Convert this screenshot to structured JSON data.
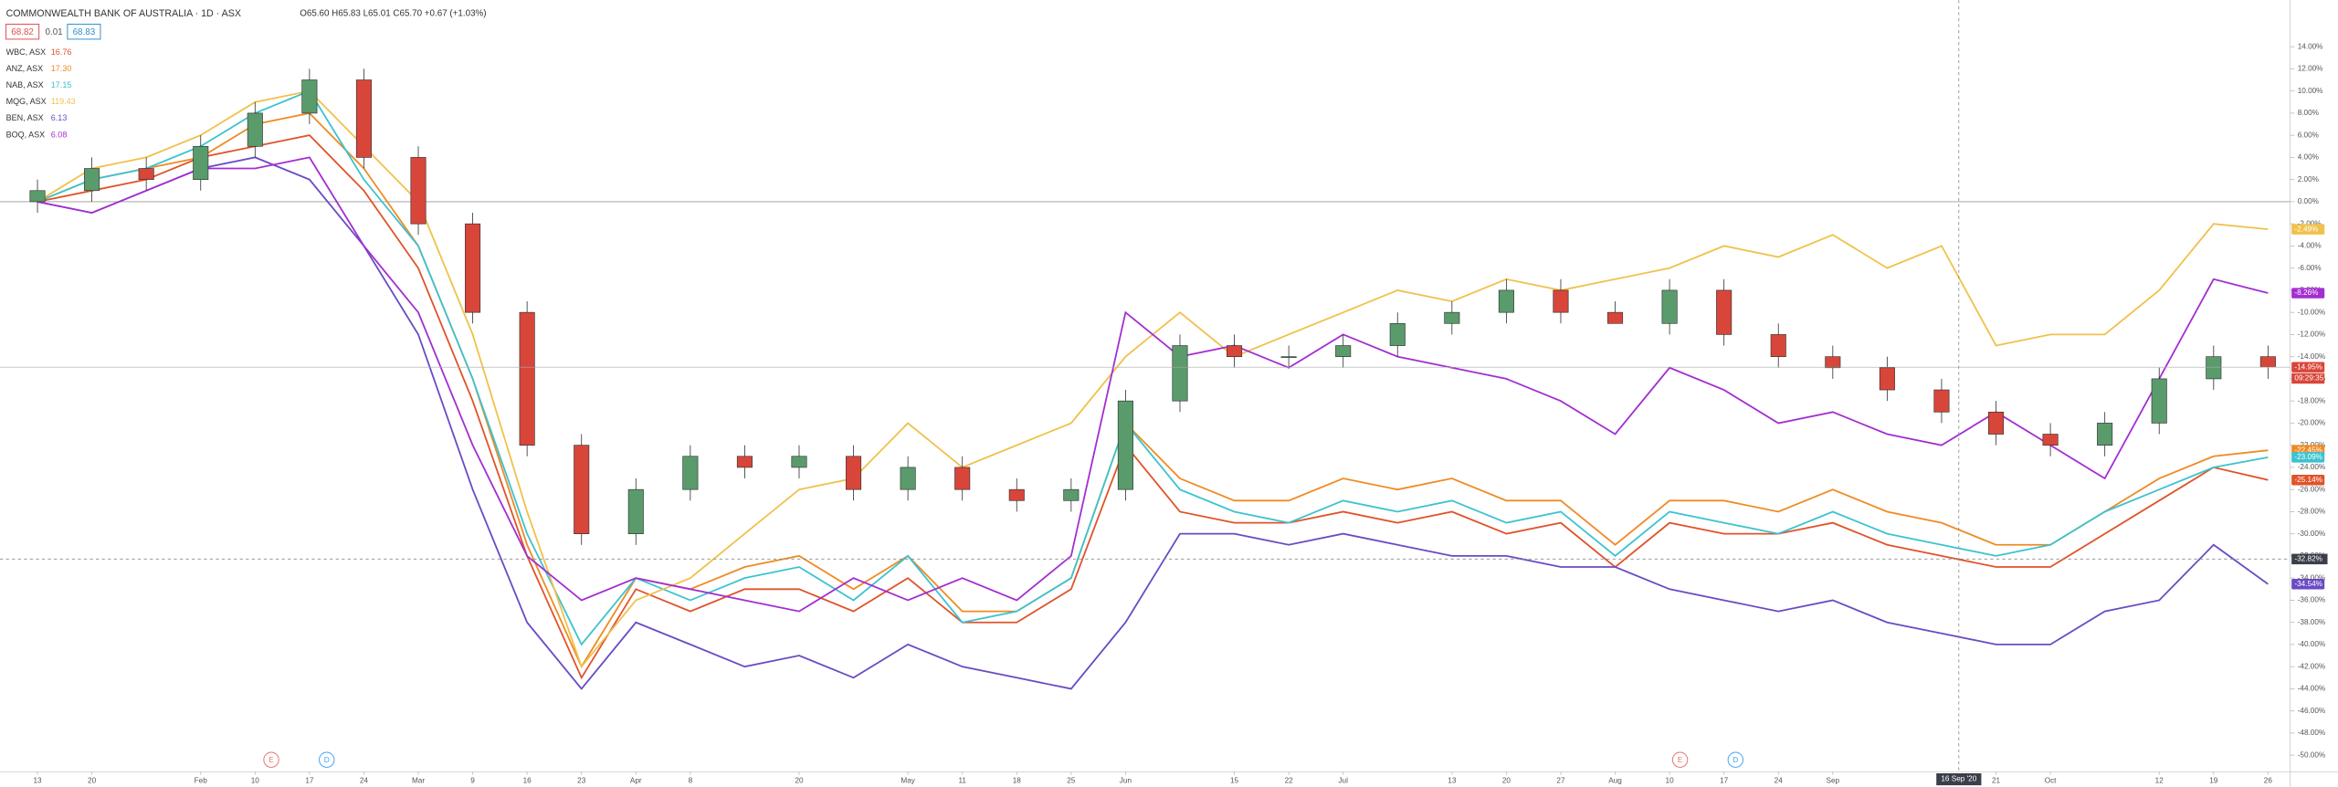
{
  "header": {
    "symbol": "COMMONWEALTH BANK OF AUSTRALIA · 1D · ASX",
    "ohlc_text": "O65.60 H65.83 L65.01 C65.70 +0.67 (+1.03%)",
    "bid": "68.82",
    "spread": "0.01",
    "ask": "68.83"
  },
  "crosshair": {
    "date": "16 Sep '20",
    "value_label": "-32.82%"
  },
  "events": [
    {
      "label": "E"
    },
    {
      "label": "D"
    },
    {
      "label": "E"
    },
    {
      "label": "D"
    }
  ],
  "countdown": "09:29:35",
  "chart_data": {
    "type": "line",
    "grid": false,
    "categories": [
      "13",
      "20",
      null,
      "Feb",
      "10",
      "17",
      "24",
      "Mar",
      "9",
      "16",
      "23",
      "Apr",
      "8",
      null,
      "20",
      null,
      "May",
      "11",
      "18",
      "25",
      "Jun",
      null,
      "15",
      "22",
      "Jul",
      null,
      "13",
      "20",
      "27",
      "Aug",
      "10",
      "17",
      "24",
      "Sep",
      null,
      null,
      "21",
      "Oct",
      null,
      "12",
      "19",
      "26"
    ],
    "ylim": [
      -51.5,
      18.2
    ],
    "yticks": [
      {
        "value": 14,
        "label": "14.00%"
      },
      {
        "value": 12,
        "label": "12.00%"
      },
      {
        "value": 10,
        "label": "10.00%"
      },
      {
        "value": 8,
        "label": "8.00%"
      },
      {
        "value": 6,
        "label": "6.00%"
      },
      {
        "value": 4,
        "label": "4.00%"
      },
      {
        "value": 2,
        "label": "2.00%"
      },
      {
        "value": 0,
        "label": "0.00%"
      },
      {
        "value": -2,
        "label": "-2.00%"
      },
      {
        "value": -4,
        "label": "-4.00%"
      },
      {
        "value": -6,
        "label": "-6.00%"
      },
      {
        "value": -8,
        "label": "-8.00%"
      },
      {
        "value": -10,
        "label": "-10.00%"
      },
      {
        "value": -12,
        "label": "-12.00%"
      },
      {
        "value": -14,
        "label": "-14.00%"
      },
      {
        "value": -16,
        "label": "-16.00%"
      },
      {
        "value": -18,
        "label": "-18.00%"
      },
      {
        "value": -20,
        "label": "-20.00%"
      },
      {
        "value": -22,
        "label": "-22.00%"
      },
      {
        "value": -24,
        "label": "-24.00%"
      },
      {
        "value": -26,
        "label": "-26.00%"
      },
      {
        "value": -28,
        "label": "-28.00%"
      },
      {
        "value": -30,
        "label": "-30.00%"
      },
      {
        "value": -32,
        "label": "-32.00%"
      },
      {
        "value": -34,
        "label": "-34.00%"
      },
      {
        "value": -36,
        "label": "-36.00%"
      },
      {
        "value": -38,
        "label": "-38.00%"
      },
      {
        "value": -40,
        "label": "-40.00%"
      },
      {
        "value": -42,
        "label": "-42.00%"
      },
      {
        "value": -44,
        "label": "-44.00%"
      },
      {
        "value": -46,
        "label": "-46.00%"
      },
      {
        "value": -48,
        "label": "-48.00%"
      },
      {
        "value": -50,
        "label": "-50.00%"
      }
    ],
    "candles": {
      "up_color": "#5a9b6c",
      "down_color": "#d8463a",
      "last_label": "-14.95%",
      "open": [
        0,
        1,
        3,
        2,
        5,
        8,
        11,
        4,
        -2,
        -10,
        -22,
        -30,
        -26,
        -23,
        -24,
        -23,
        -26,
        -24,
        -26,
        -27,
        -26,
        -18,
        -13,
        -14,
        -14,
        -13,
        -11,
        -10,
        -8,
        -10,
        -11,
        -8,
        -12,
        -14,
        -15,
        -17,
        -19,
        -21,
        -22,
        -20,
        -16,
        -14
      ],
      "high": [
        2,
        4,
        4,
        6,
        9,
        12,
        12,
        5,
        -1,
        -9,
        -21,
        -25,
        -22,
        -22,
        -22,
        -22,
        -23,
        -23,
        -25,
        -25,
        -17,
        -12,
        -12,
        -13,
        -12,
        -10,
        -9,
        -7,
        -7,
        -9,
        -7,
        -7,
        -11,
        -13,
        -14,
        -16,
        -18,
        -20,
        -19,
        -15,
        -13,
        -13
      ],
      "low": [
        -1,
        0,
        1,
        1,
        4,
        7,
        3,
        -3,
        -11,
        -23,
        -31,
        -31,
        -27,
        -25,
        -25,
        -27,
        -27,
        -27,
        -28,
        -28,
        -27,
        -19,
        -15,
        -15,
        -15,
        -14,
        -12,
        -11,
        -11,
        -11,
        -12,
        -13,
        -15,
        -16,
        -18,
        -20,
        -22,
        -23,
        -23,
        -21,
        -17,
        -16
      ],
      "close": [
        1,
        3,
        2,
        5,
        8,
        11,
        4,
        -2,
        -10,
        -22,
        -30,
        -26,
        -23,
        -24,
        -23,
        -26,
        -24,
        -26,
        -27,
        -26,
        -18,
        -13,
        -14,
        -14,
        -13,
        -11,
        -10,
        -8,
        -10,
        -11,
        -8,
        -12,
        -14,
        -15,
        -17,
        -19,
        -21,
        -22,
        -20,
        -16,
        -14,
        -14.95
      ]
    },
    "series": [
      {
        "name": "WBC, ASX",
        "legend_value": "16.76",
        "color": "#e0532a",
        "last_label": "-25.14%",
        "values": [
          0,
          1,
          2,
          4,
          5,
          6,
          1,
          -6,
          -18,
          -32,
          -43,
          -35,
          -37,
          -35,
          -35,
          -37,
          -34,
          -38,
          -38,
          -35,
          -22,
          -28,
          -29,
          -29,
          -28,
          -29,
          -28,
          -30,
          -29,
          -33,
          -29,
          -30,
          -30,
          -29,
          -31,
          -32,
          -33,
          -33,
          -30,
          -27,
          -24,
          -25.14
        ]
      },
      {
        "name": "ANZ, ASX",
        "legend_value": "17.30",
        "color": "#f08a24",
        "last_label": "-22.45%",
        "values": [
          0,
          2,
          3,
          4,
          7,
          8,
          3,
          -4,
          -16,
          -31,
          -42,
          -34,
          -35,
          -33,
          -32,
          -35,
          -32,
          -37,
          -37,
          -34,
          -20,
          -25,
          -27,
          -27,
          -25,
          -26,
          -25,
          -27,
          -27,
          -31,
          -27,
          -27,
          -28,
          -26,
          -28,
          -29,
          -31,
          -31,
          -28,
          -25,
          -23,
          -22.45
        ]
      },
      {
        "name": "NAB, ASX",
        "legend_value": "17.15",
        "color": "#3cc3cf",
        "last_label": "-23.09%",
        "values": [
          0,
          2,
          3,
          5,
          8,
          10,
          2,
          -4,
          -16,
          -30,
          -40,
          -34,
          -36,
          -34,
          -33,
          -36,
          -32,
          -38,
          -37,
          -34,
          -20,
          -26,
          -28,
          -29,
          -27,
          -28,
          -27,
          -29,
          -28,
          -32,
          -28,
          -29,
          -30,
          -28,
          -30,
          -31,
          -32,
          -31,
          -28,
          -26,
          -24,
          -23.09
        ]
      },
      {
        "name": "MQG, ASX",
        "legend_value": "119.43",
        "color": "#f0c14b",
        "last_label": "-2.49%",
        "values": [
          0,
          3,
          4,
          6,
          9,
          10,
          5,
          0,
          -12,
          -28,
          -42,
          -36,
          -34,
          -30,
          -26,
          -25,
          -20,
          -24,
          -22,
          -20,
          -14,
          -10,
          -14,
          -12,
          -10,
          -8,
          -9,
          -7,
          -8,
          -7,
          -6,
          -4,
          -5,
          -3,
          -6,
          -4,
          -13,
          -12,
          -12,
          -8,
          -2,
          -2.49
        ]
      },
      {
        "name": "BEN, ASX",
        "legend_value": "6.13",
        "color": "#6a4bc4",
        "last_label": "-34.54%",
        "values": [
          0,
          -1,
          1,
          3,
          4,
          2,
          -4,
          -12,
          -26,
          -38,
          -44,
          -38,
          -40,
          -42,
          -41,
          -43,
          -40,
          -42,
          -43,
          -44,
          -38,
          -30,
          -30,
          -31,
          -30,
          -31,
          -32,
          -32,
          -33,
          -33,
          -35,
          -36,
          -37,
          -36,
          -38,
          -39,
          -40,
          -40,
          -37,
          -36,
          -31,
          -34.54
        ]
      },
      {
        "name": "BOQ, ASX",
        "legend_value": "6.08",
        "color": "#a32ed1",
        "last_label": "-8.26%",
        "values": [
          0,
          -1,
          1,
          3,
          3,
          4,
          -4,
          -10,
          -22,
          -32,
          -36,
          -34,
          -35,
          -36,
          -37,
          -34,
          -36,
          -34,
          -36,
          -32,
          -10,
          -14,
          -13,
          -15,
          -12,
          -14,
          -15,
          -16,
          -18,
          -21,
          -15,
          -17,
          -20,
          -19,
          -21,
          -22,
          -19,
          -22,
          -25,
          -16,
          -7,
          -8.26
        ]
      }
    ]
  }
}
